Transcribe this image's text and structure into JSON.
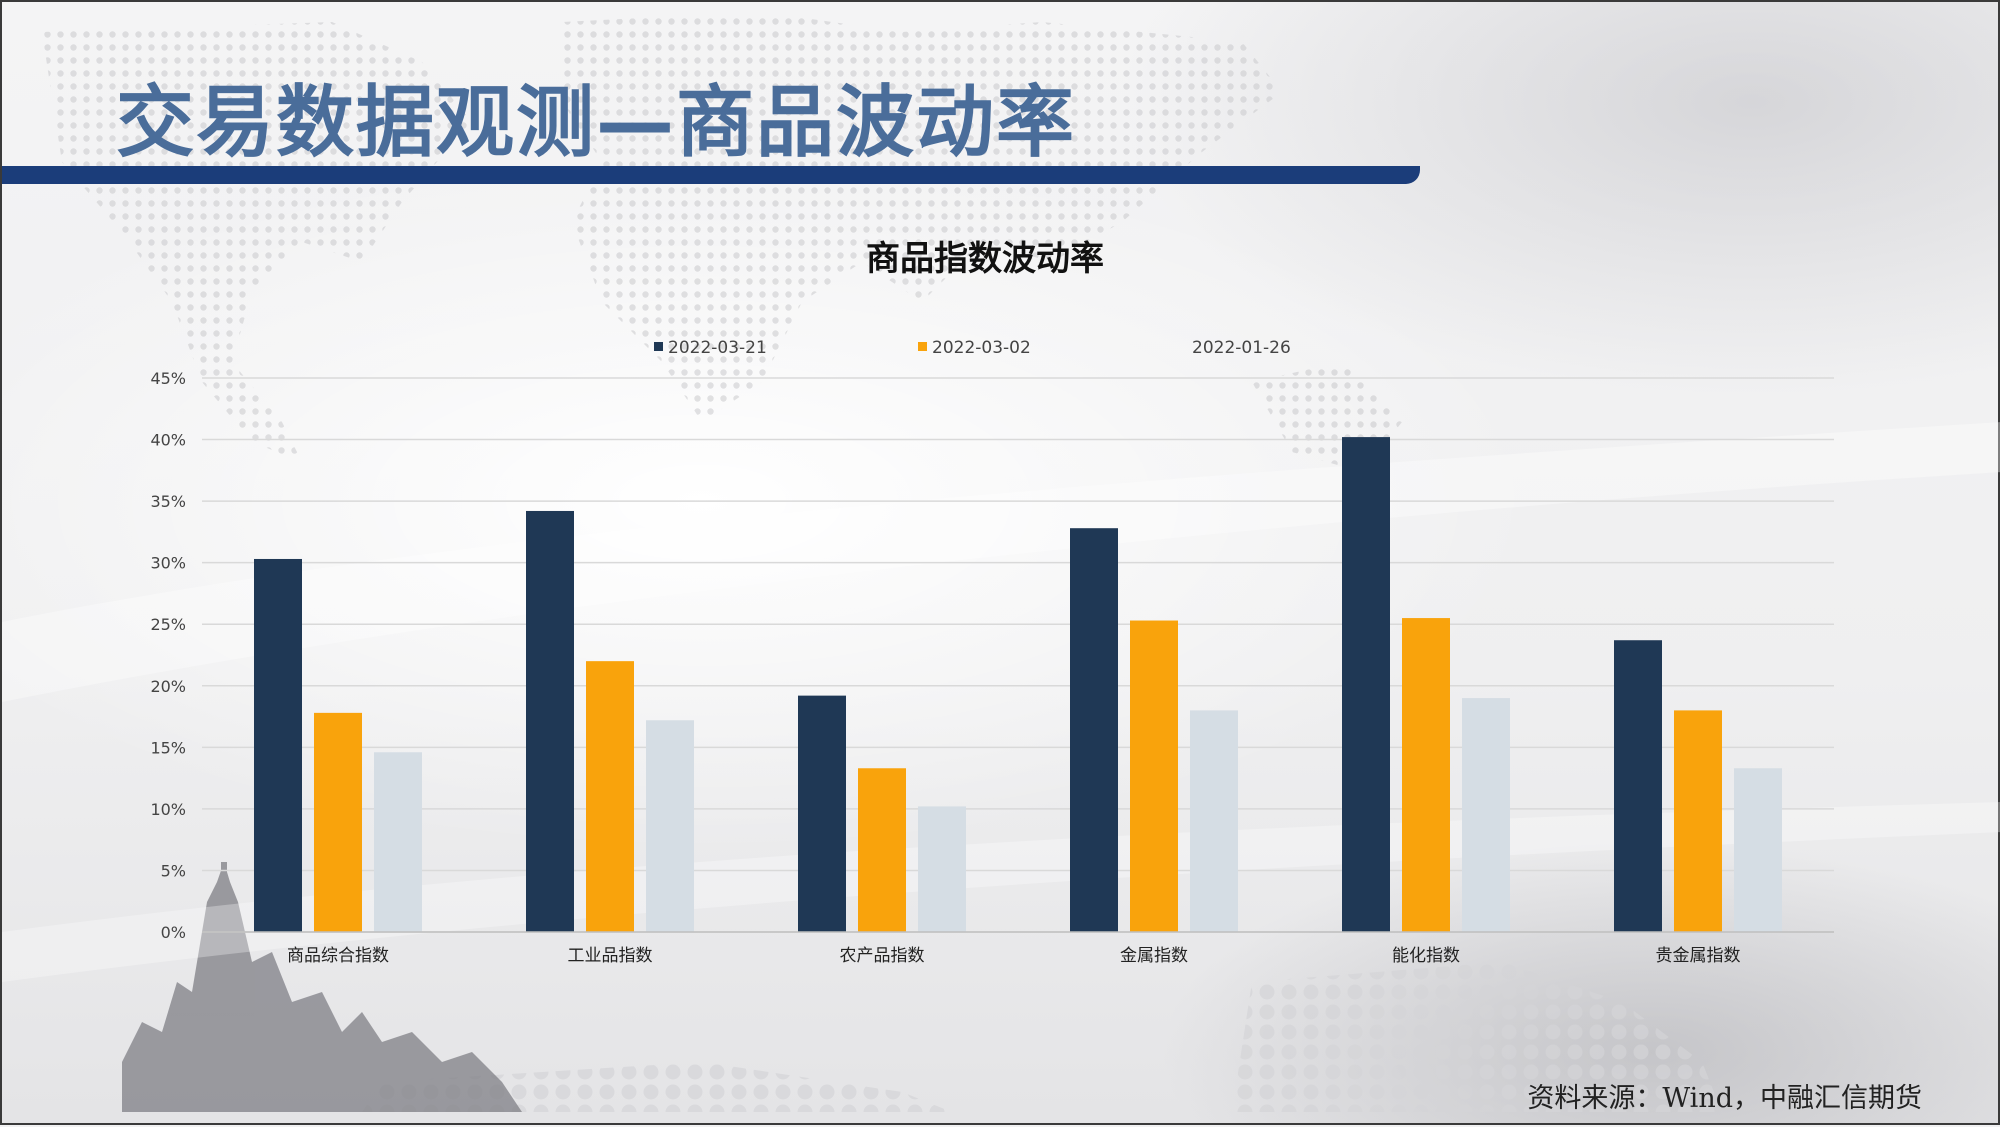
{
  "slide": {
    "title": "交易数据观测—商品波动率",
    "source": "资料来源：Wind，中融汇信期货"
  },
  "colors": {
    "title": "#4a6d9a",
    "header_bar": "#1b3d7a",
    "series_1": "#1f3855",
    "series_2": "#f9a30c",
    "series_3": "#d5dde4",
    "grid": "#d9d9d9"
  },
  "chart_data": {
    "type": "bar",
    "title": "商品指数波动率",
    "categories": [
      "商品综合指数",
      "工业品指数",
      "农产品指数",
      "金属指数",
      "能化指数",
      "贵金属指数"
    ],
    "series": [
      {
        "name": "2022-03-21",
        "values": [
          30.3,
          34.2,
          19.2,
          32.8,
          40.2,
          23.7
        ]
      },
      {
        "name": "2022-03-02",
        "values": [
          17.8,
          22.0,
          13.3,
          25.3,
          25.5,
          18.0
        ]
      },
      {
        "name": "2022-01-26",
        "values": [
          14.6,
          17.2,
          10.2,
          18.0,
          19.0,
          13.3
        ]
      }
    ],
    "yticks": [
      "0%",
      "5%",
      "10%",
      "15%",
      "20%",
      "25%",
      "30%",
      "35%",
      "40%",
      "45%"
    ],
    "ylim": [
      0,
      45
    ],
    "grid": true,
    "legend_position": "top"
  }
}
